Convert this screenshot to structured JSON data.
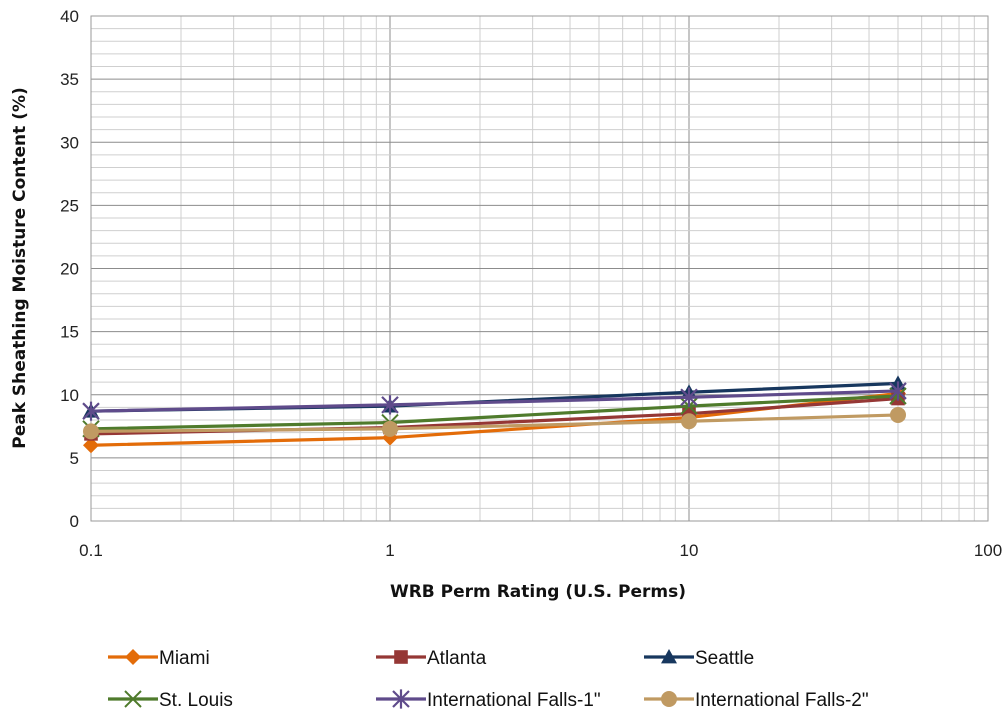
{
  "chart_data": {
    "type": "line",
    "xscale": "log",
    "x": [
      0.1,
      1,
      10,
      50
    ],
    "xlim": [
      0.1,
      100
    ],
    "ylim": [
      0,
      40
    ],
    "xticks": [
      "0.1",
      "1",
      "10",
      "100"
    ],
    "yticks": [
      "0",
      "5",
      "10",
      "15",
      "20",
      "25",
      "30",
      "35",
      "40"
    ],
    "xlabel": "WRB Perm Rating (U.S. Perms)",
    "ylabel": "Peak Sheathing Moisture Content (%)",
    "grid": true,
    "legend_position": "bottom",
    "series": [
      {
        "name": "Miami",
        "values": [
          6.0,
          6.6,
          8.2,
          10.1
        ],
        "color": "#e36c09",
        "marker": "diamond"
      },
      {
        "name": "Atlanta",
        "values": [
          6.9,
          7.4,
          8.5,
          9.7
        ],
        "color": "#953735",
        "marker": "square"
      },
      {
        "name": "Seattle",
        "values": [
          8.7,
          9.1,
          10.2,
          10.9
        ],
        "color": "#17375e",
        "marker": "triangle"
      },
      {
        "name": "St. Louis",
        "values": [
          7.3,
          7.8,
          9.1,
          9.9
        ],
        "color": "#4f7b2c",
        "marker": "x"
      },
      {
        "name": "International Falls-1\"",
        "values": [
          8.7,
          9.2,
          9.8,
          10.3
        ],
        "color": "#5f4b8b",
        "marker": "asterisk"
      },
      {
        "name": "International Falls-2\"",
        "values": [
          7.1,
          7.3,
          7.9,
          8.4
        ],
        "color": "#c09a62",
        "marker": "circle"
      }
    ]
  }
}
